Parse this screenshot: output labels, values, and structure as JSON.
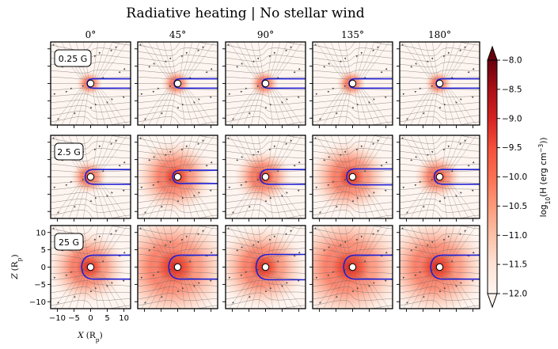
{
  "chart_data": {
    "type": "heatmap",
    "title": "Radiative heating | No stellar wind",
    "column_titles": [
      "0$^\\circ$",
      "45$^\\circ$",
      "90$^\\circ$",
      "135$^\\circ$",
      "180$^\\circ$"
    ],
    "column_titles_display": [
      "0°",
      "45°",
      "90°",
      "135°",
      "180°"
    ],
    "row_labels": [
      "0.25 G",
      "2.5 G",
      "25 G"
    ],
    "xlabel": "X (R_p)",
    "ylabel": "Z (R_p)",
    "xlabel_parts": {
      "var": "X",
      "unit_open": "(",
      "unit_main": "R",
      "unit_sub": "p",
      "unit_close": ")"
    },
    "ylabel_parts": {
      "var": "Z",
      "unit_open": "(",
      "unit_main": "R",
      "unit_sub": "p",
      "unit_close": ")"
    },
    "xlim": [
      -12,
      12
    ],
    "ylim": [
      -12,
      12
    ],
    "x_ticks": [
      -10,
      -5,
      0,
      5,
      10
    ],
    "y_ticks": [
      10,
      5,
      0,
      -5,
      -10
    ],
    "x_tick_labels": [
      "−10",
      "−5",
      "0",
      "5",
      "10"
    ],
    "y_tick_labels": [
      "10",
      "5",
      "0",
      "−5",
      "−10"
    ],
    "colorbar": {
      "label": "log10(H (erg cm^-3))",
      "label_parts": {
        "pre": "log",
        "sub": "10",
        "mid": "(H (erg cm",
        "sup": "−3",
        "post": "))"
      },
      "range": [
        -12.0,
        -8.0
      ],
      "ticks": [
        -8.0,
        -8.5,
        -9.0,
        -9.5,
        -10.0,
        -10.5,
        -11.0,
        -11.5,
        -12.0
      ],
      "tick_labels": [
        "−8.0",
        "−8.5",
        "−9.0",
        "−9.5",
        "−10.0",
        "−10.5",
        "−11.0",
        "−11.5",
        "−12.0"
      ],
      "colormap": "Reds",
      "extend": "both"
    },
    "panels": [
      {
        "field": "0.25 G",
        "angle": "0°",
        "tail_half_width": 1.4,
        "heating_extent": 2.5
      },
      {
        "field": "0.25 G",
        "angle": "45°",
        "tail_half_width": 1.4,
        "heating_extent": 2.8
      },
      {
        "field": "0.25 G",
        "angle": "90°",
        "tail_half_width": 1.4,
        "heating_extent": 2.8
      },
      {
        "field": "0.25 G",
        "angle": "135°",
        "tail_half_width": 1.4,
        "heating_extent": 2.8
      },
      {
        "field": "0.25 G",
        "angle": "180°",
        "tail_half_width": 1.4,
        "heating_extent": 2.6
      },
      {
        "field": "2.5 G",
        "angle": "0°",
        "tail_half_width": 2.2,
        "heating_extent": 3.5
      },
      {
        "field": "2.5 G",
        "angle": "45°",
        "tail_half_width": 2.0,
        "heating_extent": 7.5
      },
      {
        "field": "2.5 G",
        "angle": "90°",
        "tail_half_width": 2.2,
        "heating_extent": 5.5
      },
      {
        "field": "2.5 G",
        "angle": "135°",
        "tail_half_width": 2.4,
        "heating_extent": 7.5
      },
      {
        "field": "2.5 G",
        "angle": "180°",
        "tail_half_width": 2.2,
        "heating_extent": 4.5
      },
      {
        "field": "25 G",
        "angle": "0°",
        "tail_half_width": 3.6,
        "heating_extent": 7.5
      },
      {
        "field": "25 G",
        "angle": "45°",
        "tail_half_width": 3.6,
        "heating_extent": 11.0
      },
      {
        "field": "25 G",
        "angle": "90°",
        "tail_half_width": 3.8,
        "heating_extent": 8.5
      },
      {
        "field": "25 G",
        "angle": "135°",
        "tail_half_width": 3.6,
        "heating_extent": 11.0
      },
      {
        "field": "25 G",
        "angle": "180°",
        "tail_half_width": 3.6,
        "heating_extent": 10.0
      }
    ]
  }
}
